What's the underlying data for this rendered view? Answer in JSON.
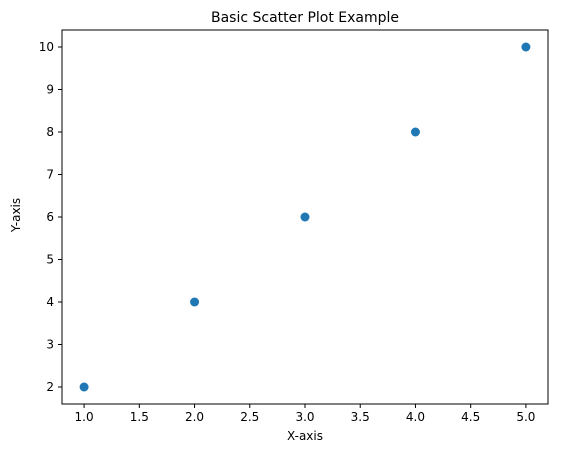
{
  "chart_data": {
    "type": "scatter",
    "title": "Basic Scatter Plot Example",
    "xlabel": "X-axis",
    "ylabel": "Y-axis",
    "x": [
      1,
      2,
      3,
      4,
      5
    ],
    "y": [
      2,
      4,
      6,
      8,
      10
    ],
    "xlim": [
      0.8,
      5.2
    ],
    "ylim": [
      1.6,
      10.4
    ],
    "xticks": [
      "1.0",
      "1.5",
      "2.0",
      "2.5",
      "3.0",
      "3.5",
      "4.0",
      "4.5",
      "5.0"
    ],
    "yticks": [
      "2",
      "3",
      "4",
      "5",
      "6",
      "7",
      "8",
      "9",
      "10"
    ],
    "grid": false,
    "marker_color": "#1f77b4"
  }
}
